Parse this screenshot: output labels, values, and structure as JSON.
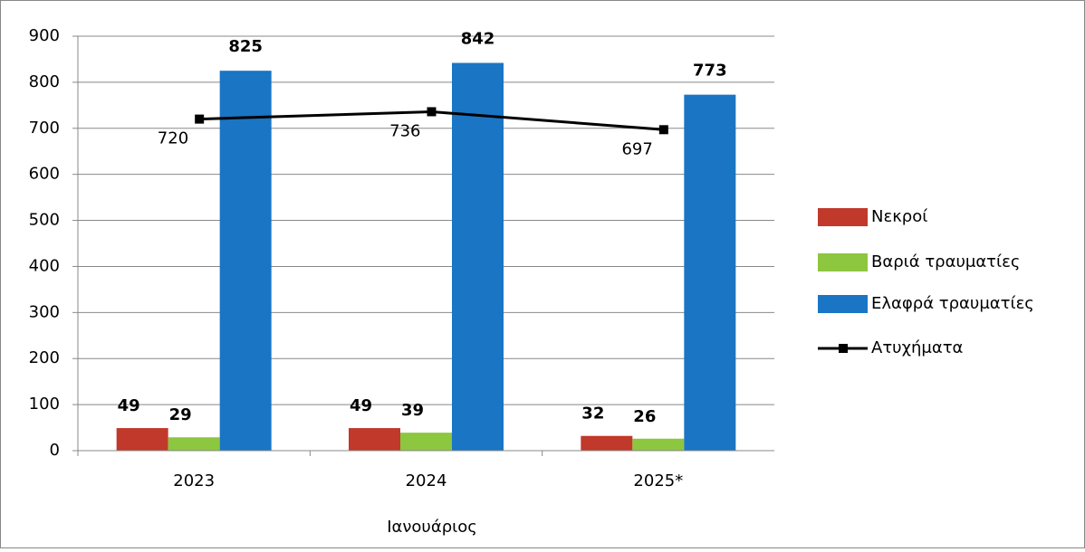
{
  "chart_data": {
    "type": "bar",
    "x_label": "Ιανουάριος",
    "categories": [
      "2023",
      "2024",
      "2025*"
    ],
    "series": [
      {
        "name": "Νεκροί",
        "color": "#c0392b",
        "values": [
          49,
          49,
          32
        ]
      },
      {
        "name": "Βαριά τραυματίες",
        "color": "#8dc63f",
        "values": [
          29,
          39,
          26
        ]
      },
      {
        "name": "Ελαφρά τραυματίες",
        "color": "#1a75c4",
        "values": [
          825,
          842,
          773
        ]
      },
      {
        "name": "Ατυχήματα",
        "type": "line",
        "color": "#000000",
        "values": [
          720,
          736,
          697
        ]
      }
    ],
    "ylim": [
      0,
      900
    ],
    "yticks": [
      0,
      100,
      200,
      300,
      400,
      500,
      600,
      700,
      800,
      900
    ],
    "grid": true,
    "legend": "right"
  }
}
